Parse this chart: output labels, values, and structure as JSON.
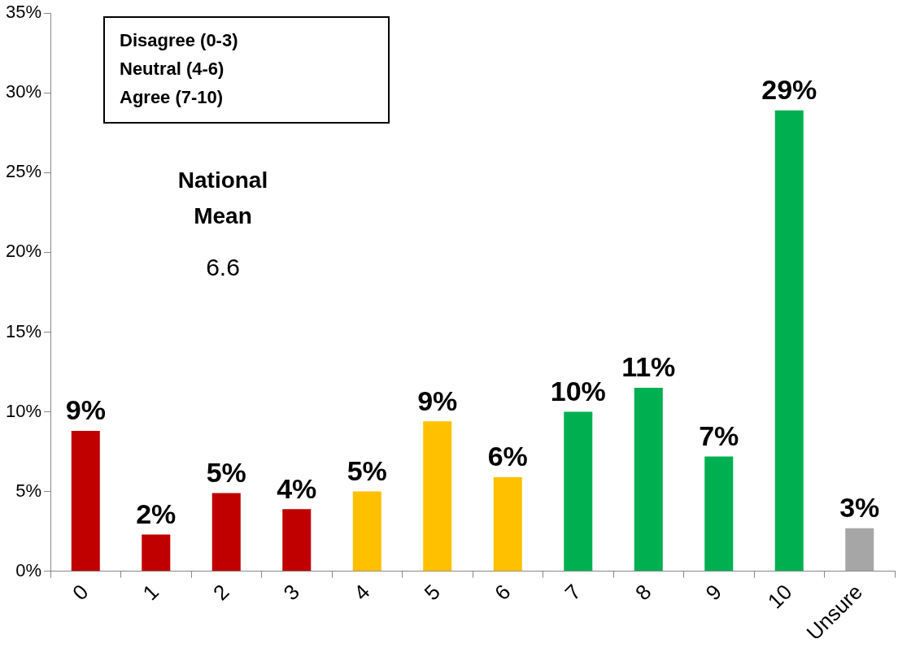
{
  "chart_data": {
    "type": "bar",
    "categories": [
      "0",
      "1",
      "2",
      "3",
      "4",
      "5",
      "6",
      "7",
      "8",
      "9",
      "10",
      "Unsure"
    ],
    "values": [
      8.8,
      2.3,
      4.9,
      3.9,
      5.0,
      9.4,
      5.9,
      10.0,
      11.5,
      7.2,
      28.9,
      2.7
    ],
    "colors": [
      "#c00000",
      "#c00000",
      "#c00000",
      "#c00000",
      "#ffc000",
      "#ffc000",
      "#ffc000",
      "#00b050",
      "#00b050",
      "#00b050",
      "#00b050",
      "#a6a6a6"
    ],
    "value_labels": [
      "9%",
      "2%",
      "5%",
      "4%",
      "5%",
      "9%",
      "6%",
      "10%",
      "11%",
      "7%",
      "29%",
      "3%"
    ],
    "ylim": [
      0,
      35
    ],
    "yticks": [
      {
        "value": 0,
        "label": "0%"
      },
      {
        "value": 5,
        "label": "5%"
      },
      {
        "value": 10,
        "label": "10%"
      },
      {
        "value": 15,
        "label": "15%"
      },
      {
        "value": 20,
        "label": "20%"
      },
      {
        "value": 25,
        "label": "25%"
      },
      {
        "value": 30,
        "label": "30%"
      },
      {
        "value": 35,
        "label": "35%"
      }
    ],
    "grid": false,
    "legend": false,
    "annotations": [
      "Disagree (0-3)",
      "Neutral (4-6)",
      "Agree (7-10)",
      "National",
      "Mean",
      "6.6"
    ]
  }
}
